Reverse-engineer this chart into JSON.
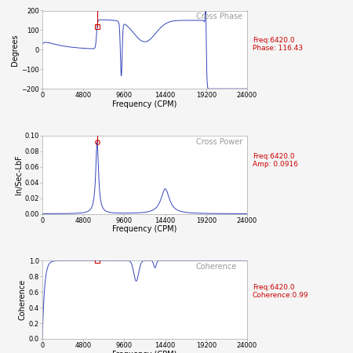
{
  "title1": "Cross Phase",
  "title2": "Cross Power",
  "title3": "Coherence",
  "xlabel": "Frequency (CPM)",
  "ylabel1": "Degrees",
  "ylabel2": "In/Sec-LbF",
  "ylabel3": "Coherence",
  "xlim": [
    0,
    24000
  ],
  "ylim1": [
    -200,
    200
  ],
  "ylim2": [
    0,
    0.1
  ],
  "ylim3": [
    0,
    1
  ],
  "xticks": [
    0,
    4800,
    9600,
    14400,
    19200,
    24000
  ],
  "yticks1": [
    -200,
    -100,
    0,
    100,
    200
  ],
  "yticks2": [
    0,
    0.02,
    0.04,
    0.06,
    0.08,
    0.1
  ],
  "yticks3": [
    0,
    0.2,
    0.4,
    0.6,
    0.8,
    1.0
  ],
  "marker_freq": 6420,
  "label1": "Freq:6420.0\nPhase: 116.43",
  "label2": "Freq:6420.0\nAmp: 0.0916",
  "label3": "Freq:6420.0\nCoherence:0.99",
  "label_color": "#cc0000",
  "line_color": "#3344bb",
  "bg_color": "#f5f5f5",
  "plot_bg": "#ffffff",
  "marker_color": "#cc0000",
  "title_color": "#999999",
  "title_fontsize": 7,
  "label_fontsize": 6.5,
  "tick_fontsize": 6,
  "axis_label_fontsize": 7
}
